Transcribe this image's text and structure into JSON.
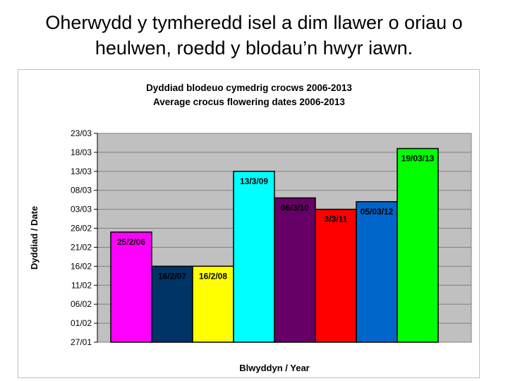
{
  "slide": {
    "heading_line1": "Oherwydd y tymheredd isel a dim llawer o oriau o",
    "heading_line2": "heulwen, roedd y blodau’n hwyr iawn."
  },
  "chart_data": {
    "type": "bar",
    "title_line1": "Dyddiad blodeuo cymedrig crocws  2006-2013",
    "title_line2": "Average crocus flowering dates 2006-2013",
    "xlabel": "Blwyddyn / Year",
    "ylabel": "Dyddiad / Date",
    "y_ticks": [
      "27/01",
      "01/02",
      "06/02",
      "11/02",
      "16/02",
      "21/02",
      "26/02",
      "03/03",
      "08/03",
      "13/03",
      "18/03",
      "23/03"
    ],
    "y_tick_days": [
      0,
      5,
      10,
      15,
      20,
      25,
      30,
      35,
      40,
      45,
      50,
      55
    ],
    "ylim": [
      0,
      55
    ],
    "grid": true,
    "plot_background": "#c0c0c0",
    "bars": [
      {
        "label": "25/2/06",
        "value": 29,
        "color": "#ff00ff"
      },
      {
        "label": "16/2/07",
        "value": 20,
        "color": "#003366"
      },
      {
        "label": "16/2/08",
        "value": 20,
        "color": "#ffff00"
      },
      {
        "label": "13/3/09",
        "value": 45,
        "color": "#00ffff"
      },
      {
        "label": "06/3/10",
        "value": 38,
        "color": "#660066"
      },
      {
        "label": "3/3/11",
        "value": 35,
        "color": "#ff0000"
      },
      {
        "label": "05/03/12",
        "value": 37,
        "color": "#0066cc"
      },
      {
        "label": "19/03/13",
        "value": 51,
        "color": "#00ff00"
      }
    ]
  }
}
